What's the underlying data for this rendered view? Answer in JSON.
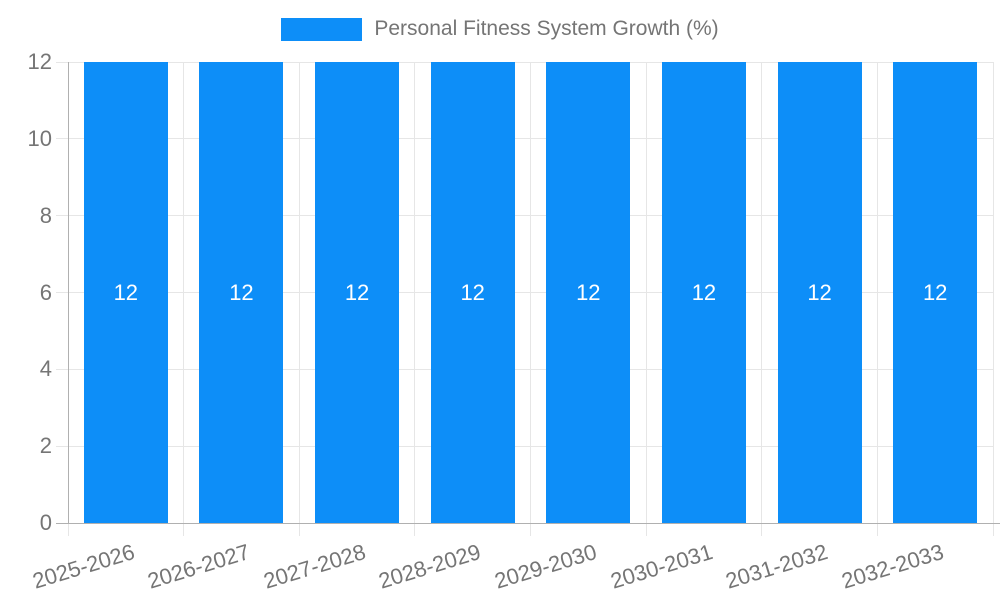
{
  "legend": {
    "items": [
      {
        "label": "Personal Fitness System Growth (%)",
        "color": "#0d8ef8"
      }
    ]
  },
  "colors": {
    "bar": "#0d8ef8",
    "grid_line": "#e6e6e6",
    "axis_line": "#b0b0b0",
    "tick_text": "#757575",
    "bar_label_text": "#ffffff",
    "background": "#ffffff"
  },
  "chart_data": {
    "type": "bar",
    "title": "",
    "legend_position": "top",
    "legend_entries": [
      "Personal Fitness System Growth (%)"
    ],
    "categories": [
      "2025-2026",
      "2026-2027",
      "2027-2028",
      "2028-2029",
      "2029-2030",
      "2030-2031",
      "2031-2032",
      "2032-2033"
    ],
    "series": [
      {
        "name": "Personal Fitness System Growth (%)",
        "color": "#0d8ef8",
        "values": [
          12,
          12,
          12,
          12,
          12,
          12,
          12,
          12
        ]
      }
    ],
    "bar_value_labels": [
      "12",
      "12",
      "12",
      "12",
      "12",
      "12",
      "12",
      "12"
    ],
    "xlabel": "",
    "ylabel": "",
    "ylim": [
      0,
      12
    ],
    "yticks": [
      0,
      2,
      4,
      6,
      8,
      10,
      12
    ],
    "grid": {
      "horizontal": true,
      "vertical_category_boundaries": true
    },
    "x_tick_rotation_deg": -17
  }
}
